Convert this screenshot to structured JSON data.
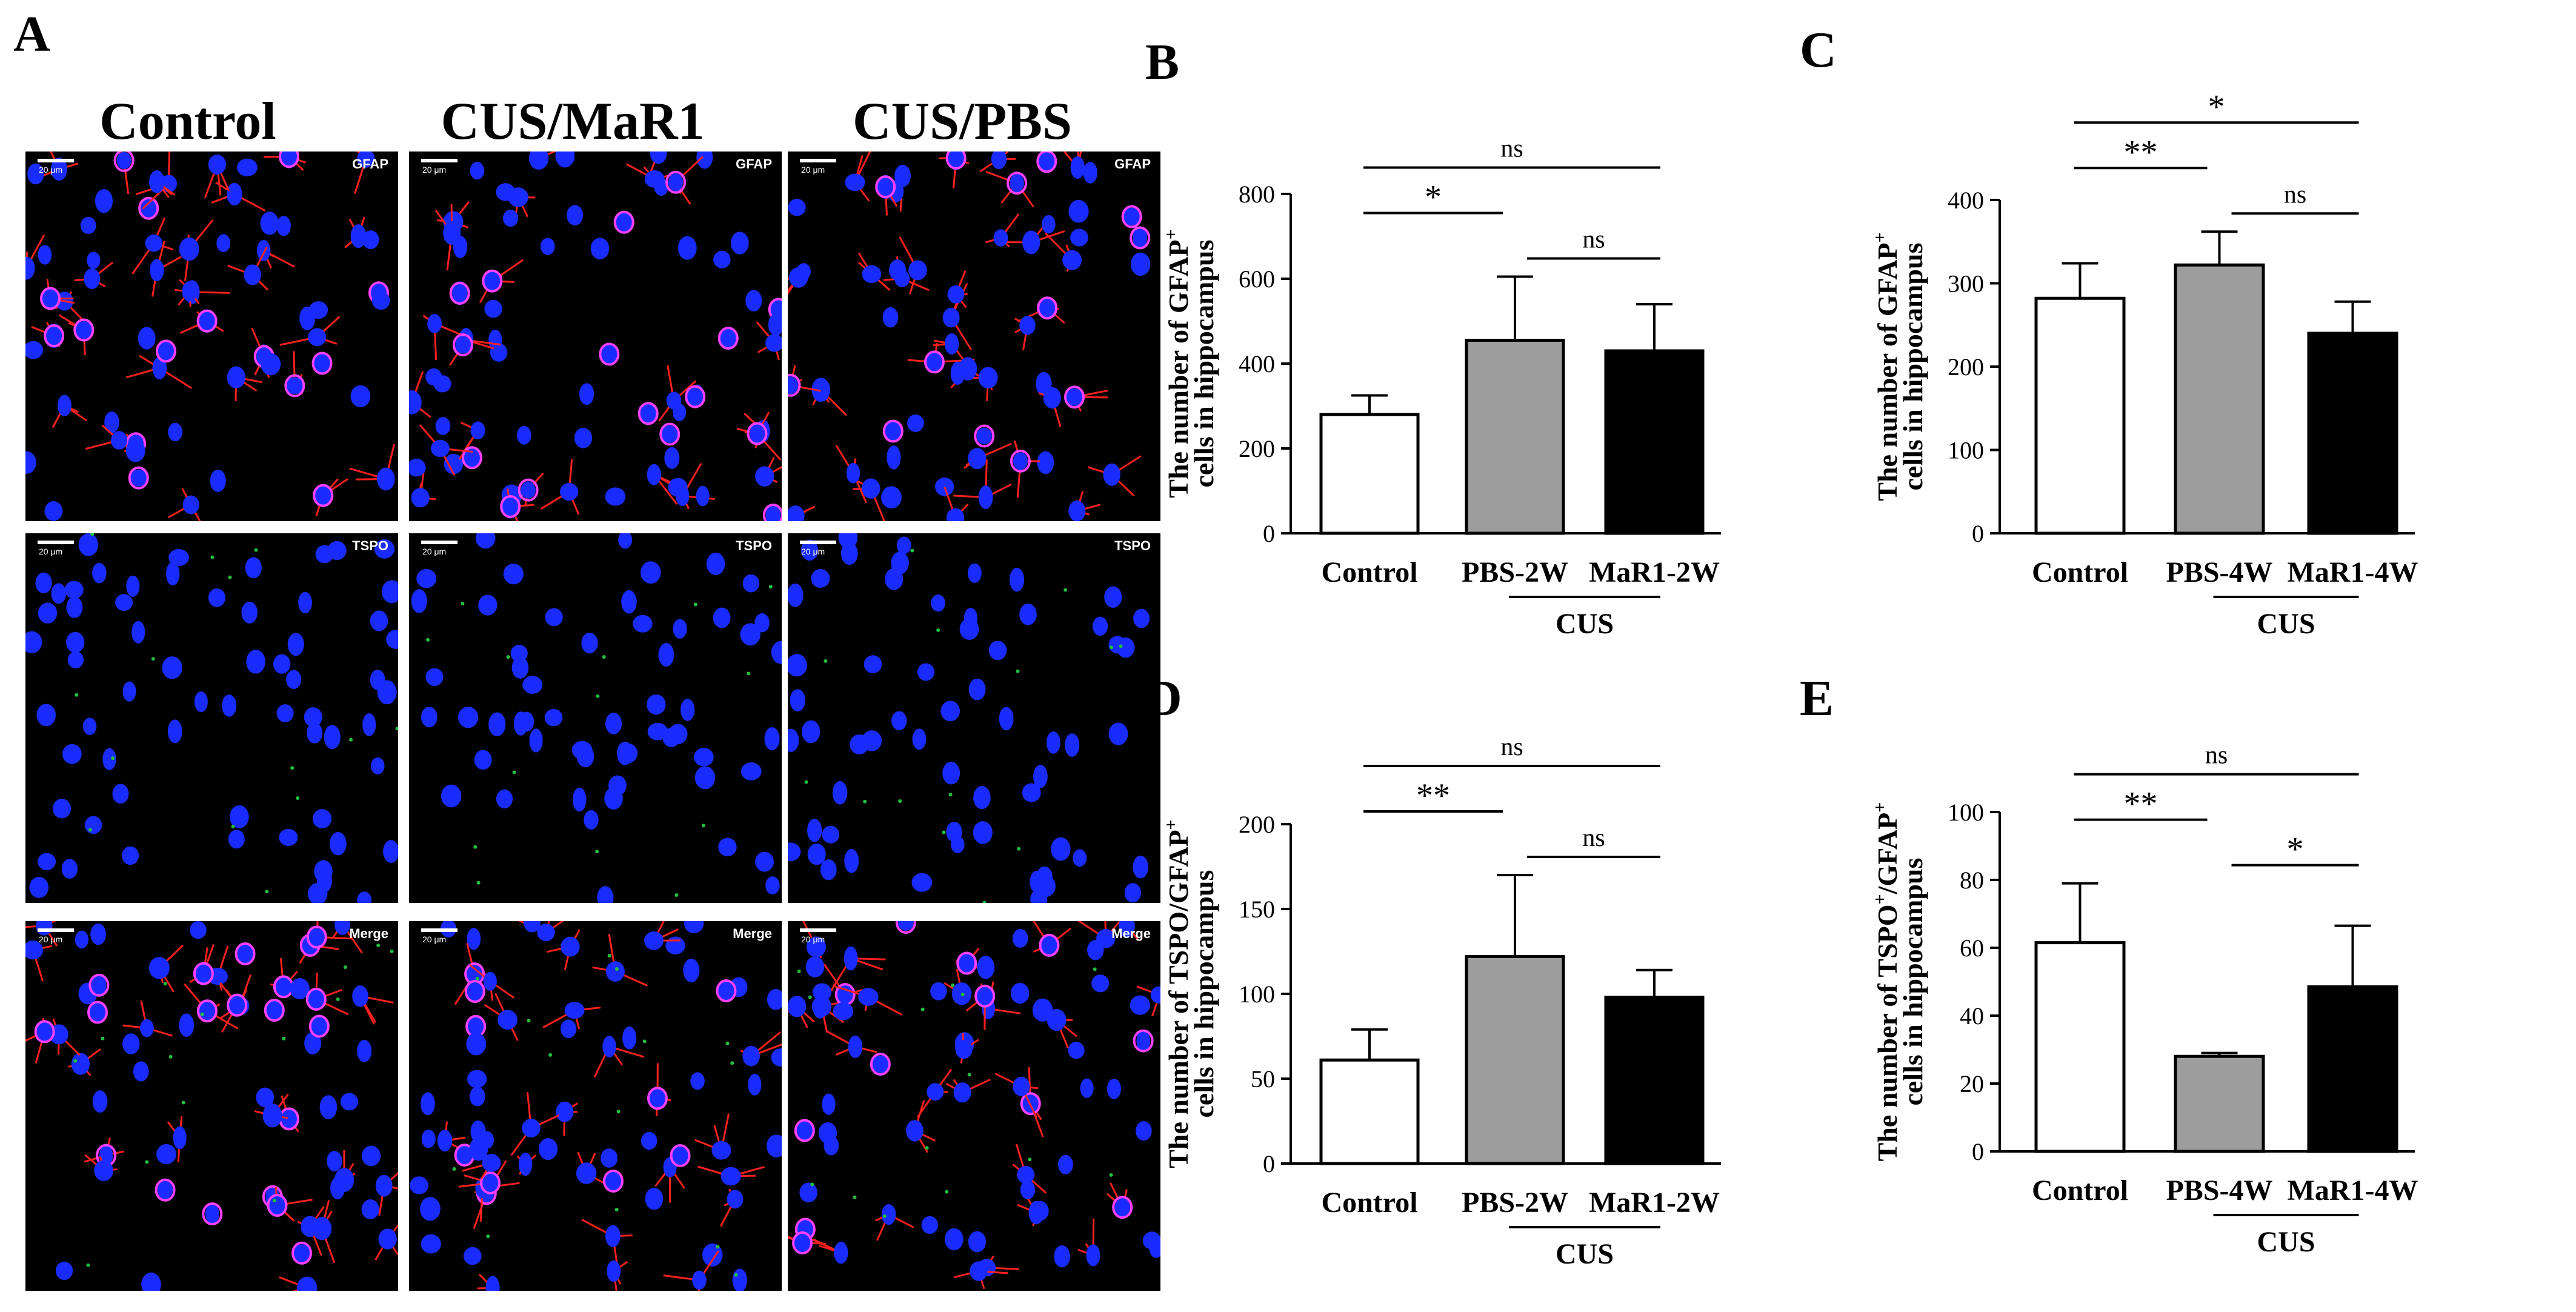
{
  "panel_a": {
    "letter": "A",
    "columns": [
      "Control",
      "CUS/MaR1",
      "CUS/PBS"
    ],
    "rows": [
      {
        "label": "GFAP"
      },
      {
        "label": "TSPO"
      },
      {
        "label": "Merge"
      }
    ],
    "scale_label": "20 μm",
    "colors": {
      "nuclei": "#1a2bff",
      "gfap": "#ff2020",
      "tspo": "#20c040",
      "colocal": "#ff40ff"
    }
  },
  "chart_data": [
    {
      "letter": "B",
      "type": "bar",
      "ylabel_line1": "The number of GFAP",
      "ylabel_sup": "+",
      "ylabel_line2": "cells in hippocampus",
      "categories": [
        "Control",
        "PBS-2W",
        "MaR1-2W"
      ],
      "values": [
        280,
        455,
        430
      ],
      "errors": [
        45,
        150,
        110
      ],
      "fills": [
        "#ffffff",
        "#9d9d9d",
        "#000000"
      ],
      "ylim": [
        0,
        800
      ],
      "yticks": [
        0,
        200,
        400,
        600,
        800
      ],
      "group_label": "CUS",
      "significance": [
        {
          "from": 0,
          "to": 1,
          "text": "*"
        },
        {
          "from": 1,
          "to": 2,
          "text": "ns"
        },
        {
          "from": 0,
          "to": 2,
          "text": "ns"
        }
      ]
    },
    {
      "letter": "C",
      "type": "bar",
      "ylabel_line1": "The number of GFAP",
      "ylabel_sup": "+",
      "ylabel_line2": "cells in hippocampus",
      "categories": [
        "Control",
        "PBS-4W",
        "MaR1-4W"
      ],
      "values": [
        282,
        322,
        240
      ],
      "errors": [
        42,
        40,
        38
      ],
      "fills": [
        "#ffffff",
        "#9d9d9d",
        "#000000"
      ],
      "ylim": [
        0,
        400
      ],
      "yticks": [
        0,
        100,
        200,
        300,
        400
      ],
      "group_label": "CUS",
      "significance": [
        {
          "from": 0,
          "to": 1,
          "text": "**"
        },
        {
          "from": 1,
          "to": 2,
          "text": "ns"
        },
        {
          "from": 0,
          "to": 2,
          "text": "*"
        }
      ]
    },
    {
      "letter": "D",
      "type": "bar",
      "ylabel_line1": "The number of TSPO/GFAP",
      "ylabel_sup": "+",
      "ylabel_line2": "cells in hippocampus",
      "categories": [
        "Control",
        "PBS-2W",
        "MaR1-2W"
      ],
      "values": [
        61,
        122,
        98
      ],
      "errors": [
        18,
        48,
        16
      ],
      "fills": [
        "#ffffff",
        "#9d9d9d",
        "#000000"
      ],
      "ylim": [
        0,
        200
      ],
      "yticks": [
        0,
        50,
        100,
        150,
        200
      ],
      "group_label": "CUS",
      "significance": [
        {
          "from": 0,
          "to": 1,
          "text": "**"
        },
        {
          "from": 1,
          "to": 2,
          "text": "ns"
        },
        {
          "from": 0,
          "to": 2,
          "text": "ns"
        }
      ]
    },
    {
      "letter": "E",
      "type": "bar",
      "ylabel_line1": "The number of TSPO",
      "ylabel_sup": "+",
      "ylabel_mid": "/GFAP",
      "ylabel_sup2": "+",
      "ylabel_line2": "cells in hippocampus",
      "categories": [
        "Control",
        "PBS-4W",
        "MaR1-4W"
      ],
      "values": [
        61.5,
        28,
        48.5
      ],
      "errors": [
        17.5,
        1,
        18
      ],
      "fills": [
        "#ffffff",
        "#9d9d9d",
        "#000000"
      ],
      "ylim": [
        0,
        100
      ],
      "yticks": [
        0,
        20,
        40,
        60,
        80,
        100
      ],
      "group_label": "CUS",
      "significance": [
        {
          "from": 0,
          "to": 1,
          "text": "**"
        },
        {
          "from": 1,
          "to": 2,
          "text": "*"
        },
        {
          "from": 0,
          "to": 2,
          "text": "ns"
        }
      ]
    }
  ]
}
